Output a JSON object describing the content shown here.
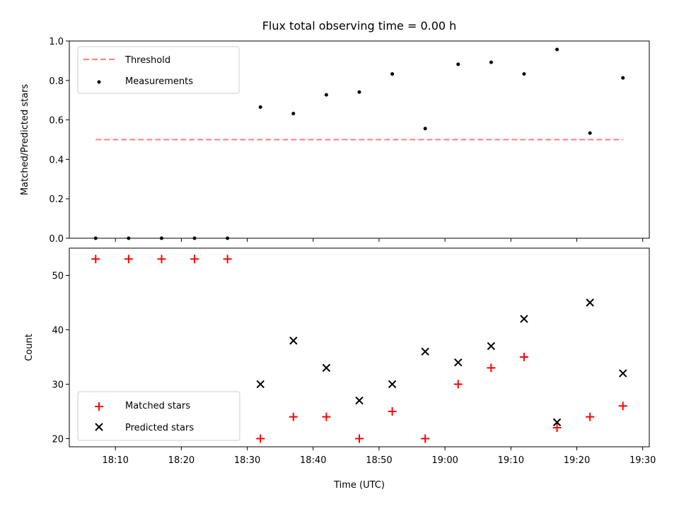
{
  "figure": {
    "title": "Flux total observing time = 0.00 h"
  },
  "chart_data": [
    {
      "type": "scatter",
      "title": "Flux total observing time = 0.00 h",
      "xlabel": "",
      "ylabel": "Matched/Predicted stars",
      "ylim": [
        0.0,
        1.0
      ],
      "yticks": [
        0.0,
        0.2,
        0.4,
        0.6,
        0.8,
        1.0
      ],
      "ytick_labels": [
        "0.0",
        "0.2",
        "0.4",
        "0.6",
        "0.8",
        "1.0"
      ],
      "legend": {
        "placement": "upper-left",
        "entries": [
          "Threshold",
          "Measurements"
        ]
      },
      "series": [
        {
          "name": "Threshold",
          "kind": "dashed-line",
          "color": "#ff7f7f",
          "x": [
            "18:07",
            "19:27"
          ],
          "y": [
            0.5,
            0.5
          ]
        },
        {
          "name": "Measurements",
          "kind": "dot",
          "color": "#000000",
          "x": [
            "18:07",
            "18:12",
            "18:17",
            "18:22",
            "18:27",
            "18:32",
            "18:37",
            "18:42",
            "18:47",
            "18:52",
            "18:57",
            "19:02",
            "19:07",
            "19:12",
            "19:17",
            "19:22",
            "19:27"
          ],
          "y": [
            0.0,
            0.0,
            0.0,
            0.0,
            0.0,
            0.665,
            0.632,
            0.727,
            0.741,
            0.833,
            0.556,
            0.882,
            0.892,
            0.833,
            0.957,
            0.533,
            0.813
          ]
        }
      ]
    },
    {
      "type": "scatter",
      "title": "",
      "xlabel": "Time (UTC)",
      "ylabel": "Count",
      "ylim": [
        18.5,
        55.0
      ],
      "yticks": [
        20,
        30,
        40,
        50
      ],
      "ytick_labels": [
        "20",
        "30",
        "40",
        "50"
      ],
      "xlim": [
        "18:03",
        "19:31"
      ],
      "xticks": [
        "18:10",
        "18:20",
        "18:30",
        "18:40",
        "18:50",
        "19:00",
        "19:10",
        "19:20",
        "19:30"
      ],
      "xtick_labels": [
        "18:10",
        "18:20",
        "18:30",
        "18:40",
        "18:50",
        "19:00",
        "19:10",
        "19:20",
        "19:30"
      ],
      "legend": {
        "placement": "lower-left",
        "entries": [
          "Matched stars",
          "Predicted stars"
        ]
      },
      "series": [
        {
          "name": "Matched stars",
          "kind": "plus",
          "color": "#ff0000",
          "x": [
            "18:07",
            "18:12",
            "18:17",
            "18:22",
            "18:27",
            "18:32",
            "18:37",
            "18:42",
            "18:47",
            "18:52",
            "18:57",
            "19:02",
            "19:07",
            "19:12",
            "19:17",
            "19:22",
            "19:27"
          ],
          "y": [
            53,
            53,
            53,
            53,
            53,
            20,
            24,
            24,
            20,
            25,
            20,
            30,
            33,
            35,
            22,
            24,
            26
          ]
        },
        {
          "name": "Predicted stars",
          "kind": "x",
          "color": "#000000",
          "x": [
            "18:32",
            "18:37",
            "18:42",
            "18:47",
            "18:52",
            "18:57",
            "19:02",
            "19:07",
            "19:12",
            "19:17",
            "19:22",
            "19:27"
          ],
          "y": [
            30,
            38,
            33,
            27,
            30,
            36,
            34,
            37,
            42,
            23,
            45,
            32
          ]
        }
      ]
    }
  ]
}
